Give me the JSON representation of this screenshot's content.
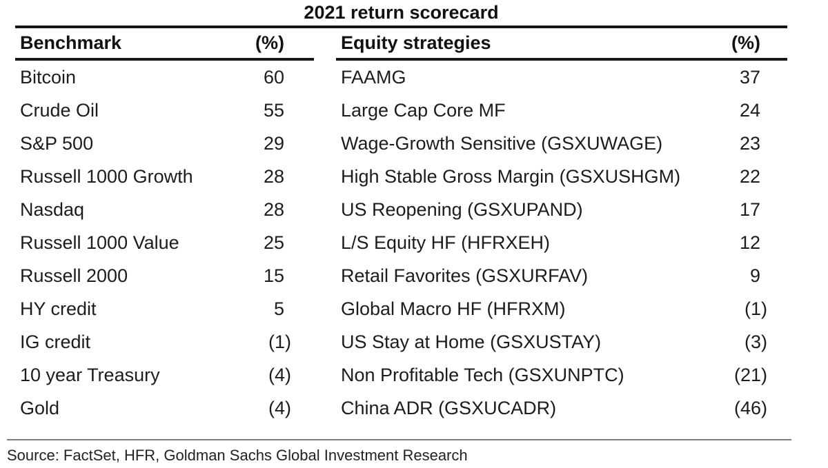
{
  "title": "2021 return scorecard",
  "source": "Source: FactSet, HFR, Goldman Sachs Global Investment Research",
  "colors": {
    "rule_black": "#161616",
    "column_shade": "#f0f0f0",
    "source_rule_gray": "#7e7e7e",
    "text": "#1c1c1c"
  },
  "tables": [
    {
      "header": {
        "label": "Benchmark",
        "unit": "(%)"
      },
      "rows": [
        {
          "name": "Bitcoin",
          "value": "60"
        },
        {
          "name": "Crude Oil",
          "value": "55"
        },
        {
          "name": "S&P 500",
          "value": "29"
        },
        {
          "name": "Russell 1000 Growth",
          "value": "28"
        },
        {
          "name": "Nasdaq",
          "value": "28"
        },
        {
          "name": "Russell 1000 Value",
          "value": "25"
        },
        {
          "name": "Russell 2000",
          "value": "15"
        },
        {
          "name": "HY credit",
          "value": "5"
        },
        {
          "name": "IG credit",
          "value": "(1)"
        },
        {
          "name": "10 year Treasury",
          "value": "(4)"
        },
        {
          "name": "Gold",
          "value": "(4)"
        }
      ]
    },
    {
      "header": {
        "label": "Equity strategies",
        "unit": "(%)"
      },
      "rows": [
        {
          "name": "FAAMG",
          "value": "37"
        },
        {
          "name": "Large Cap Core MF",
          "value": "24"
        },
        {
          "name": "Wage-Growth Sensitive (GSXUWAGE)",
          "value": "23"
        },
        {
          "name": "High Stable Gross Margin (GSXUSHGM)",
          "value": "22"
        },
        {
          "name": "US Reopening (GSXUPAND)",
          "value": "17"
        },
        {
          "name": "L/S Equity HF (HFRXEH)",
          "value": "12"
        },
        {
          "name": "Retail Favorites (GSXURFAV)",
          "value": "9"
        },
        {
          "name": "Global Macro HF (HFRXM)",
          "value": "(1)"
        },
        {
          "name": "US Stay at Home (GSXUSTAY)",
          "value": "(3)"
        },
        {
          "name": "Non Profitable Tech (GSXUNPTC)",
          "value": "(21)"
        },
        {
          "name": "China ADR (GSXUCADR)",
          "value": "(46)"
        }
      ]
    }
  ],
  "chart_data": [
    {
      "type": "table",
      "title": "2021 return scorecard",
      "columns": [
        "Benchmark",
        "(%)"
      ],
      "rows": [
        [
          "Bitcoin",
          60
        ],
        [
          "Crude Oil",
          55
        ],
        [
          "S&P 500",
          29
        ],
        [
          "Russell 1000 Growth",
          28
        ],
        [
          "Nasdaq",
          28
        ],
        [
          "Russell 1000 Value",
          25
        ],
        [
          "Russell 2000",
          15
        ],
        [
          "HY credit",
          5
        ],
        [
          "IG credit",
          -1
        ],
        [
          "10 year Treasury",
          -4
        ],
        [
          "Gold",
          -4
        ]
      ],
      "note": "negative values shown in parentheses"
    },
    {
      "type": "table",
      "title": "2021 return scorecard",
      "columns": [
        "Equity strategies",
        "(%)"
      ],
      "rows": [
        [
          "FAAMG",
          37
        ],
        [
          "Large Cap Core MF",
          24
        ],
        [
          "Wage-Growth Sensitive (GSXUWAGE)",
          23
        ],
        [
          "High Stable Gross Margin (GSXUSHGM)",
          22
        ],
        [
          "US Reopening (GSXUPAND)",
          17
        ],
        [
          "L/S Equity HF (HFRXEH)",
          12
        ],
        [
          "Retail Favorites (GSXURFAV)",
          9
        ],
        [
          "Global Macro HF (HFRXM)",
          -1
        ],
        [
          "US Stay at Home (GSXUSTAY)",
          -3
        ],
        [
          "Non Profitable Tech (GSXUNPTC)",
          -21
        ],
        [
          "China ADR (GSXUCADR)",
          -46
        ]
      ],
      "note": "negative values shown in parentheses"
    }
  ]
}
